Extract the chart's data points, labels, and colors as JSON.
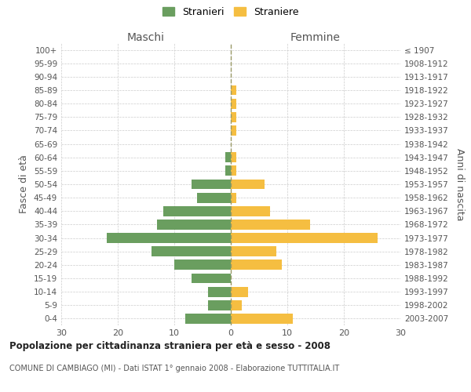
{
  "age_groups": [
    "0-4",
    "5-9",
    "10-14",
    "15-19",
    "20-24",
    "25-29",
    "30-34",
    "35-39",
    "40-44",
    "45-49",
    "50-54",
    "55-59",
    "60-64",
    "65-69",
    "70-74",
    "75-79",
    "80-84",
    "85-89",
    "90-94",
    "95-99",
    "100+"
  ],
  "birth_years": [
    "2003-2007",
    "1998-2002",
    "1993-1997",
    "1988-1992",
    "1983-1987",
    "1978-1982",
    "1973-1977",
    "1968-1972",
    "1963-1967",
    "1958-1962",
    "1953-1957",
    "1948-1952",
    "1943-1947",
    "1938-1942",
    "1933-1937",
    "1928-1932",
    "1923-1927",
    "1918-1922",
    "1913-1917",
    "1908-1912",
    "≤ 1907"
  ],
  "males": [
    8,
    4,
    4,
    7,
    10,
    14,
    22,
    13,
    12,
    6,
    7,
    1,
    1,
    0,
    0,
    0,
    0,
    0,
    0,
    0,
    0
  ],
  "females": [
    11,
    2,
    3,
    0,
    9,
    8,
    26,
    14,
    7,
    1,
    6,
    1,
    1,
    0,
    1,
    1,
    1,
    1,
    0,
    0,
    0
  ],
  "male_color": "#6a9e5f",
  "female_color": "#f5be41",
  "center_line_color": "#999966",
  "grid_color": "#cccccc",
  "bg_color": "#ffffff",
  "title": "Popolazione per cittadinanza straniera per età e sesso - 2008",
  "subtitle": "COMUNE DI CAMBIAGO (MI) - Dati ISTAT 1° gennaio 2008 - Elaborazione TUTTITALIA.IT",
  "xlabel_left": "Maschi",
  "xlabel_right": "Femmine",
  "ylabel_left": "Fasce di età",
  "ylabel_right": "Anni di nascita",
  "xlim": 30,
  "legend_stranieri": "Stranieri",
  "legend_straniere": "Straniere"
}
